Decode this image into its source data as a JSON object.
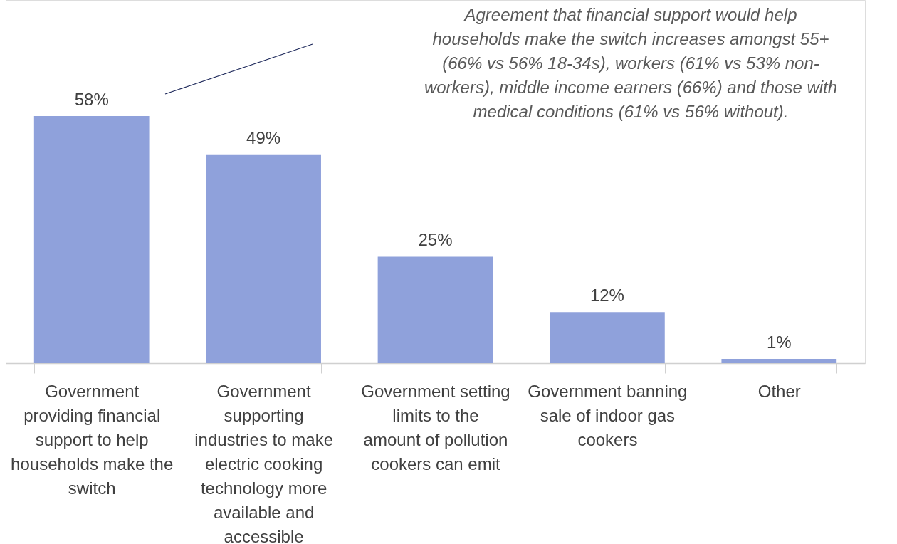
{
  "chart_data": {
    "type": "bar",
    "categories": [
      "Government providing financial support to help households make the switch",
      "Government supporting industries to make electric cooking technology more available and accessible",
      "Government setting limits to the amount of pollution cookers can emit",
      "Government banning sale of indoor gas cookers",
      "Other"
    ],
    "values": [
      58,
      49,
      25,
      12,
      1
    ],
    "color": "#8fa1db",
    "data_labels": true,
    "value_labels": [
      "58%",
      "49%",
      "25%",
      "12%",
      "1%"
    ],
    "annotations": [
      "Agreement that financial support would help households make the switch increases amongst 55+ (66% vs 56% 18-34s), workers (61% vs 53% non-workers), middle income earners (66%) and those with medical conditions (61% vs 56% without)."
    ]
  }
}
